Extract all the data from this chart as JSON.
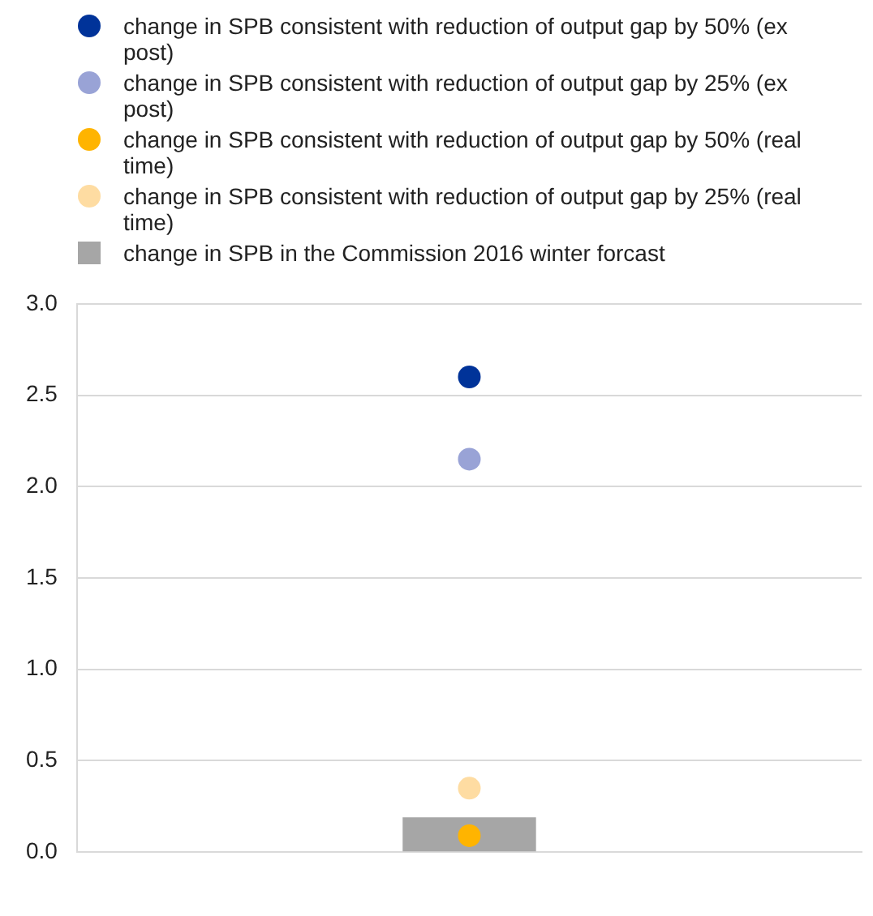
{
  "chart_data": {
    "type": "bar",
    "categories": [
      null
    ],
    "series": [
      {
        "name": "change in SPB consistent with reduction of output gap by 50% (ex post)",
        "type": "scatter",
        "color": "#003399",
        "values": [
          2.6
        ]
      },
      {
        "name": "change in SPB consistent with reduction of output gap by 25% (ex post)",
        "type": "scatter",
        "color": "#99a3d6",
        "values": [
          2.15
        ]
      },
      {
        "name": "change in SPB consistent with reduction of output gap by 50% (real time)",
        "type": "scatter",
        "color": "#ffb400",
        "values": [
          0.09
        ]
      },
      {
        "name": "change in SPB consistent with reduction of output gap by 25% (real time)",
        "type": "scatter",
        "color": "#fedca2",
        "values": [
          0.35
        ]
      },
      {
        "name": "change in SPB in the Commission 2016 winter forcast",
        "color": "#a6a6a6",
        "values": [
          0.19
        ]
      }
    ],
    "ylim": [
      0,
      3
    ],
    "yticks": [
      {
        "value": 0,
        "label": "0.0"
      },
      {
        "value": 0.5,
        "label": "0.5"
      },
      {
        "value": 1,
        "label": "1.0"
      },
      {
        "value": 1.5,
        "label": "1.5"
      },
      {
        "value": 2,
        "label": "2.0"
      },
      {
        "value": 2.5,
        "label": "2.5"
      },
      {
        "value": 3,
        "label": "3.0"
      }
    ],
    "grid": "y",
    "legend": "top",
    "marker": "circle"
  }
}
